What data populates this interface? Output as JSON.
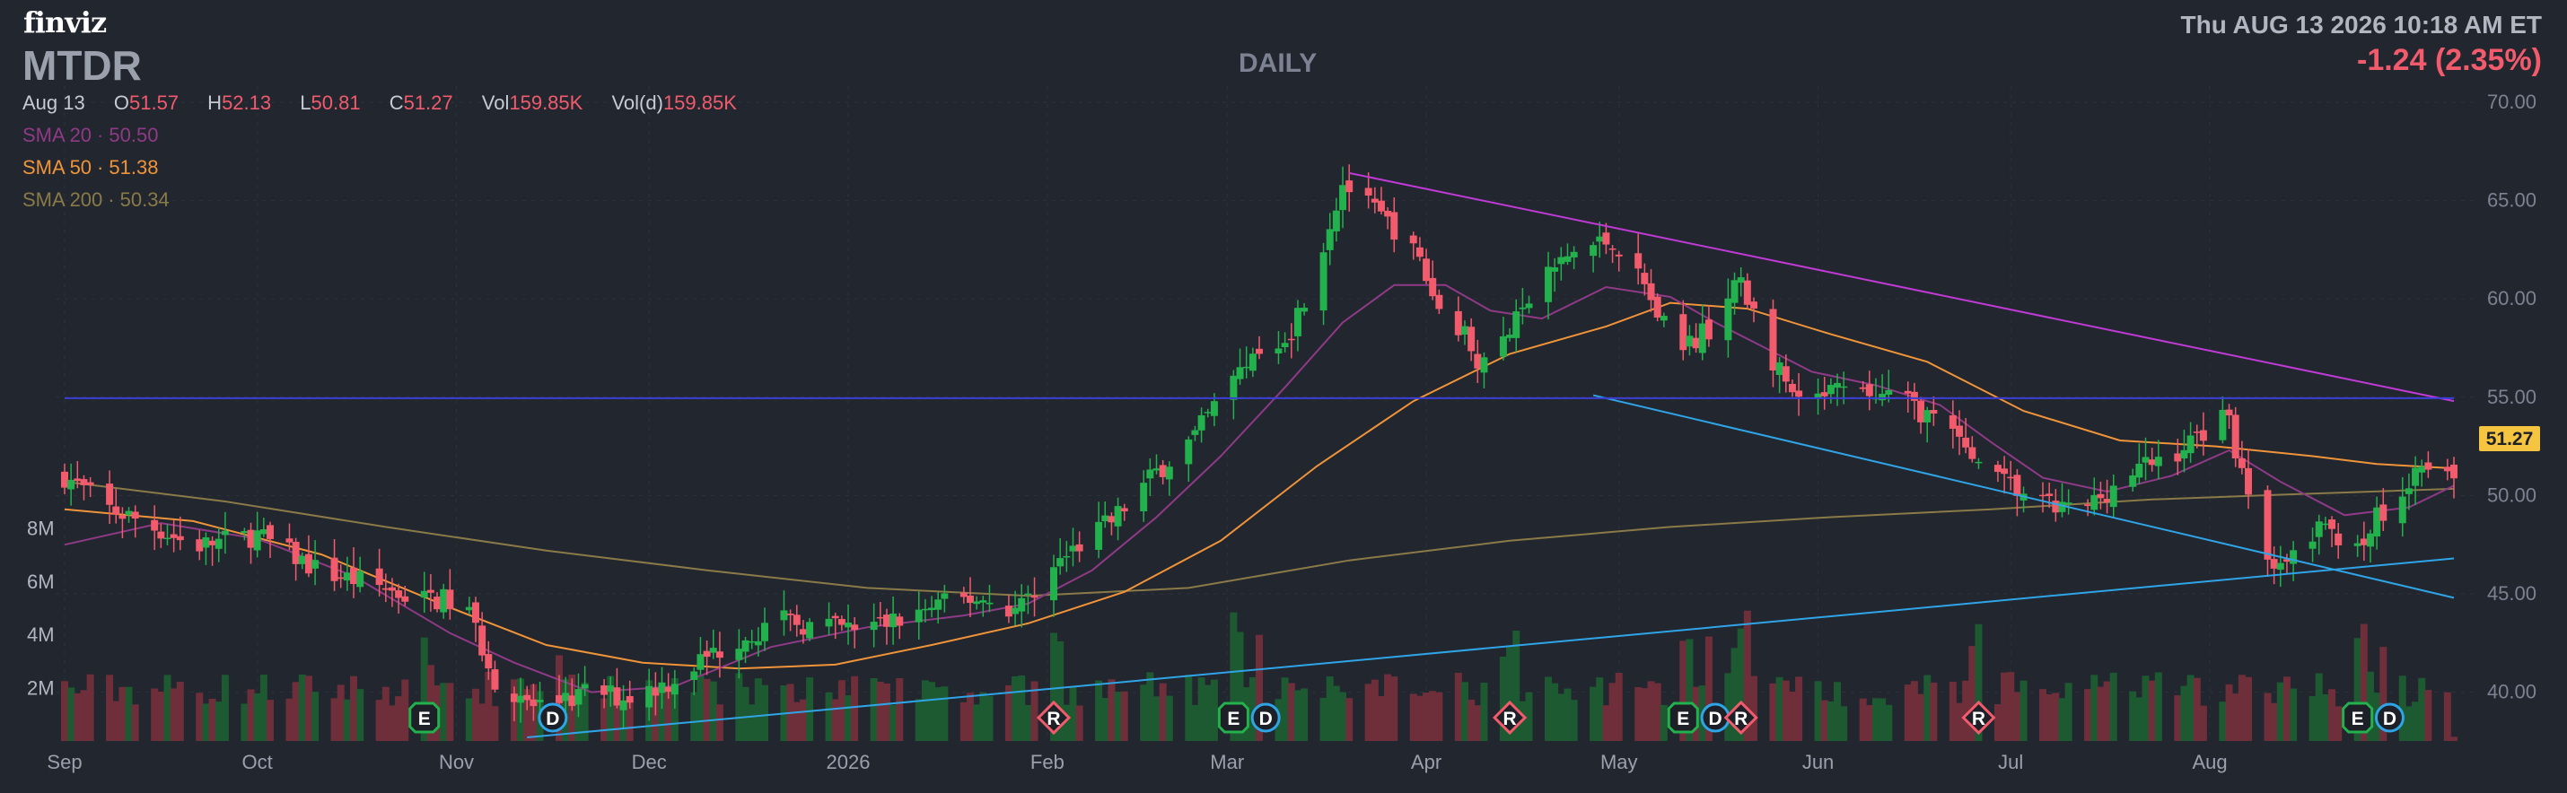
{
  "header": {
    "logo": "finviz",
    "ticker": "MTDR",
    "timeframe": "DAILY",
    "datetime": "Thu AUG 13 2026 10:18 AM ET",
    "change": "-1.24 (2.35%)"
  },
  "ohlc": {
    "date": "Aug 13",
    "open_label": "O",
    "open": "51.57",
    "high_label": "H",
    "high": "52.13",
    "low_label": "L",
    "low": "50.81",
    "close_label": "C",
    "close": "51.27",
    "vol_label": "Vol",
    "vol": "159.85K",
    "vold_label": "Vol(d)",
    "vold": "159.85K"
  },
  "sma": {
    "sma20_label": "SMA 20",
    "sma20": "50.50",
    "sma50_label": "SMA 50",
    "sma50": "51.38",
    "sma200_label": "SMA 200",
    "sma200": "50.34"
  },
  "colors": {
    "background": "#22262f",
    "up": "#22b14c",
    "down": "#f15b6c",
    "sma20": "#8f3a86",
    "sma50": "#f0943a",
    "sma200": "#8a7a48",
    "trend_magenta": "#c03ad6",
    "trend_blue": "#2fa4e7",
    "level_line": "#3c3fd6",
    "price_tag": "#f5c542"
  },
  "chart_data": {
    "type": "candlestick",
    "x_axis_labels": [
      "Sep",
      "Oct",
      "Nov",
      "Dec",
      "2026",
      "Feb",
      "Mar",
      "Apr",
      "May",
      "Jun",
      "Jul",
      "Aug"
    ],
    "x_axis_label_days": [
      0,
      30,
      61,
      91,
      122,
      153,
      181,
      212,
      242,
      273,
      303,
      334
    ],
    "y_ticks": [
      "40.00",
      "45.00",
      "50.00",
      "55.00",
      "60.00",
      "65.00",
      "70.00"
    ],
    "y_range": [
      37.7,
      70.5
    ],
    "volume_ticks": [
      "2M",
      "4M",
      "6M",
      "8M"
    ],
    "volume_range_millions": [
      0,
      10
    ],
    "last_price": "51.27",
    "grid": true,
    "price_path": [
      [
        0,
        51.0
      ],
      [
        7,
        49.3
      ],
      [
        12,
        48.7
      ],
      [
        20,
        47.4
      ],
      [
        30,
        48.0
      ],
      [
        40,
        46.1
      ],
      [
        48,
        45.5
      ],
      [
        54,
        44.8
      ],
      [
        59,
        44.7
      ],
      [
        63,
        44.0
      ],
      [
        68,
        39.8
      ],
      [
        73,
        39.3
      ],
      [
        78,
        39.5
      ],
      [
        82,
        40.1
      ],
      [
        87,
        39.7
      ],
      [
        94,
        40.5
      ],
      [
        100,
        41.8
      ],
      [
        106,
        42.9
      ],
      [
        112,
        43.6
      ],
      [
        118,
        43.3
      ],
      [
        124,
        43.2
      ],
      [
        130,
        43.7
      ],
      [
        137,
        44.5
      ],
      [
        142,
        44.8
      ],
      [
        148,
        44.2
      ],
      [
        153,
        46.0
      ],
      [
        158,
        47.5
      ],
      [
        163,
        48.7
      ],
      [
        170,
        51.2
      ],
      [
        176,
        53.0
      ],
      [
        181,
        55.5
      ],
      [
        186,
        57.4
      ],
      [
        191,
        58.5
      ],
      [
        195,
        61.8
      ],
      [
        199,
        65.9
      ],
      [
        203,
        64.7
      ],
      [
        207,
        63.6
      ],
      [
        211,
        61.9
      ],
      [
        214,
        59.4
      ],
      [
        217,
        58.7
      ],
      [
        221,
        56.5
      ],
      [
        226,
        58.8
      ],
      [
        230,
        61.0
      ],
      [
        235,
        62.4
      ],
      [
        241,
        63.0
      ],
      [
        246,
        60.6
      ],
      [
        251,
        57.2
      ],
      [
        256,
        58.5
      ],
      [
        261,
        61.0
      ],
      [
        266,
        56.8
      ],
      [
        270,
        54.5
      ],
      [
        276,
        55.3
      ],
      [
        281,
        55.1
      ],
      [
        287,
        54.8
      ],
      [
        292,
        53.6
      ],
      [
        296,
        52.4
      ],
      [
        301,
        50.8
      ],
      [
        305,
        50.1
      ],
      [
        309,
        49.4
      ],
      [
        314,
        49.2
      ],
      [
        319,
        50.5
      ],
      [
        324,
        51.5
      ],
      [
        330,
        52.4
      ],
      [
        333,
        53.3
      ],
      [
        336,
        54.8
      ],
      [
        339,
        51.3
      ],
      [
        342,
        47.7
      ],
      [
        345,
        46.1
      ],
      [
        348,
        47.4
      ],
      [
        351,
        48.2
      ],
      [
        354,
        48.0
      ],
      [
        357,
        47.7
      ],
      [
        360,
        48.8
      ],
      [
        363,
        49.6
      ],
      [
        366,
        51.6
      ],
      [
        369,
        51.9
      ],
      [
        372,
        51.27
      ]
    ],
    "sma20_path": [
      [
        0,
        47.5
      ],
      [
        15,
        48.6
      ],
      [
        30,
        47.8
      ],
      [
        45,
        45.9
      ],
      [
        60,
        43.0
      ],
      [
        70,
        41.5
      ],
      [
        82,
        40.0
      ],
      [
        95,
        40.3
      ],
      [
        110,
        42.3
      ],
      [
        125,
        43.3
      ],
      [
        140,
        43.9
      ],
      [
        150,
        44.5
      ],
      [
        160,
        46.2
      ],
      [
        170,
        48.9
      ],
      [
        180,
        52.0
      ],
      [
        190,
        55.5
      ],
      [
        199,
        58.8
      ],
      [
        207,
        60.7
      ],
      [
        215,
        60.7
      ],
      [
        222,
        59.4
      ],
      [
        230,
        59.0
      ],
      [
        240,
        60.6
      ],
      [
        250,
        60.1
      ],
      [
        257,
        58.8
      ],
      [
        263,
        57.8
      ],
      [
        272,
        56.3
      ],
      [
        282,
        55.6
      ],
      [
        292,
        54.6
      ],
      [
        300,
        52.7
      ],
      [
        308,
        50.9
      ],
      [
        318,
        50.2
      ],
      [
        328,
        51.0
      ],
      [
        337,
        52.3
      ],
      [
        345,
        50.7
      ],
      [
        355,
        49.0
      ],
      [
        365,
        49.4
      ],
      [
        372,
        50.5
      ]
    ],
    "sma50_path": [
      [
        0,
        49.3
      ],
      [
        20,
        48.7
      ],
      [
        40,
        47.0
      ],
      [
        60,
        44.3
      ],
      [
        75,
        42.4
      ],
      [
        90,
        41.5
      ],
      [
        105,
        41.2
      ],
      [
        120,
        41.4
      ],
      [
        135,
        42.4
      ],
      [
        150,
        43.5
      ],
      [
        165,
        45.1
      ],
      [
        180,
        47.7
      ],
      [
        195,
        51.5
      ],
      [
        210,
        54.8
      ],
      [
        225,
        57.2
      ],
      [
        240,
        58.6
      ],
      [
        250,
        59.8
      ],
      [
        262,
        59.5
      ],
      [
        275,
        58.2
      ],
      [
        290,
        56.8
      ],
      [
        305,
        54.3
      ],
      [
        320,
        52.8
      ],
      [
        335,
        52.5
      ],
      [
        350,
        52.0
      ],
      [
        360,
        51.6
      ],
      [
        372,
        51.38
      ]
    ],
    "sma200_path": [
      [
        0,
        50.7
      ],
      [
        25,
        49.7
      ],
      [
        50,
        48.4
      ],
      [
        75,
        47.2
      ],
      [
        100,
        46.2
      ],
      [
        125,
        45.3
      ],
      [
        150,
        44.9
      ],
      [
        175,
        45.3
      ],
      [
        200,
        46.7
      ],
      [
        225,
        47.7
      ],
      [
        250,
        48.4
      ],
      [
        275,
        48.9
      ],
      [
        300,
        49.3
      ],
      [
        325,
        49.8
      ],
      [
        350,
        50.1
      ],
      [
        372,
        50.34
      ]
    ],
    "trendlines": [
      {
        "color": "trend_magenta",
        "from": [
          200,
          66.4
        ],
        "to": [
          372,
          54.8
        ]
      },
      {
        "color": "trend_blue",
        "from": [
          238,
          55.1
        ],
        "to": [
          372,
          44.8
        ]
      },
      {
        "color": "trend_blue",
        "from": [
          72,
          37.7
        ],
        "to": [
          372,
          46.8
        ]
      },
      {
        "color": "level_line",
        "from": [
          0,
          54.95
        ],
        "to": [
          372,
          54.95
        ]
      }
    ],
    "events": [
      {
        "type": "E",
        "day": 56
      },
      {
        "type": "D",
        "day": 76
      },
      {
        "type": "R",
        "day": 154
      },
      {
        "type": "E",
        "day": 182
      },
      {
        "type": "D",
        "day": 187
      },
      {
        "type": "R",
        "day": 225
      },
      {
        "type": "E",
        "day": 252
      },
      {
        "type": "D",
        "day": 257
      },
      {
        "type": "R",
        "day": 261
      },
      {
        "type": "R",
        "day": 298
      },
      {
        "type": "E",
        "day": 357
      },
      {
        "type": "D",
        "day": 362
      }
    ]
  }
}
